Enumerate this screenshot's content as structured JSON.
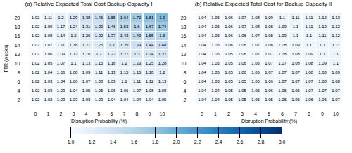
{
  "chart_data": [
    {
      "type": "heatmap",
      "title": "(a) Relative Expected Total Cost Backup Capacity I",
      "xlabel": "Disruption Probability (%)",
      "ylabel": "TTR (weeks)",
      "x": [
        0,
        1,
        2,
        3,
        4,
        5,
        6,
        7,
        8,
        9,
        10
      ],
      "y": [
        2,
        4,
        6,
        8,
        10,
        12,
        14,
        16,
        18,
        20
      ],
      "data_labels": true,
      "colorbar_range": [
        1.0,
        3.0
      ],
      "colorbar_ticks": [
        {
          "value": 1,
          "label": "1.0"
        },
        1.2,
        1.4,
        1.6,
        1.8,
        {
          "value": 2,
          "label": "2.0"
        },
        2.2,
        2.4,
        2.6,
        2.8,
        {
          "value": 3,
          "label": "3.0"
        }
      ],
      "values": [
        [
          1.02,
          1.02,
          1.03,
          1.03,
          1.03,
          1.03,
          1.04,
          1.04,
          1.04,
          1.04,
          1.05
        ],
        [
          1.02,
          1.03,
          1.03,
          1.04,
          1.05,
          1.05,
          1.06,
          1.06,
          1.07,
          1.08,
          1.08
        ],
        [
          1.02,
          1.03,
          1.04,
          1.06,
          1.07,
          1.08,
          1.09,
          1.1,
          1.11,
          1.12,
          1.13
        ],
        [
          1.02,
          1.04,
          1.06,
          1.08,
          1.09,
          1.11,
          1.13,
          1.15,
          1.16,
          1.18,
          1.2
        ],
        [
          1.02,
          1.05,
          1.07,
          1.1,
          1.13,
          1.15,
          1.18,
          1.2,
          1.23,
          1.25,
          1.28
        ],
        [
          1.02,
          1.06,
          1.09,
          1.13,
          1.16,
          1.2,
          1.23,
          1.27,
          1.3,
          1.34,
          1.37
        ],
        [
          1.02,
          1.07,
          1.11,
          1.16,
          1.21,
          1.25,
          1.3,
          1.35,
          1.39,
          1.44,
          1.48
        ],
        [
          1.02,
          1.08,
          1.14,
          1.2,
          1.26,
          1.32,
          1.37,
          1.43,
          1.49,
          1.55,
          1.6
        ],
        [
          1.02,
          1.09,
          1.17,
          1.24,
          1.31,
          1.39,
          1.46,
          1.53,
          1.6,
          1.67,
          1.74
        ],
        [
          1.02,
          1.11,
          1.2,
          1.29,
          1.38,
          1.46,
          1.55,
          1.64,
          1.72,
          1.81,
          1.9
        ]
      ]
    },
    {
      "type": "heatmap",
      "title": "(b) Relative Expected Total Cost for Backup Capacity II",
      "xlabel": "Disruption Probability (%)",
      "x": [
        0,
        1,
        2,
        3,
        4,
        5,
        6,
        7,
        8,
        9,
        10
      ],
      "y": [
        2,
        4,
        6,
        8,
        10,
        12,
        14,
        16,
        18,
        20
      ],
      "data_labels": true,
      "colorbar_range": [
        1.0,
        3.0
      ],
      "colorbar_ticks": [
        {
          "value": 1,
          "label": "1.0"
        },
        1.2,
        1.4,
        1.6,
        1.8,
        {
          "value": 2,
          "label": "2.0"
        },
        2.2,
        2.4,
        2.6,
        2.8,
        {
          "value": 3,
          "label": "3.0"
        }
      ],
      "values": [
        [
          1.04,
          1.04,
          1.05,
          1.05,
          1.05,
          1.05,
          1.06,
          1.06,
          1.06,
          1.06,
          1.07
        ],
        [
          1.04,
          1.04,
          1.05,
          1.05,
          1.05,
          1.06,
          1.06,
          1.06,
          1.07,
          1.07,
          1.07
        ],
        [
          1.04,
          1.05,
          1.05,
          1.05,
          1.06,
          1.06,
          1.07,
          1.07,
          1.07,
          1.08,
          1.08
        ],
        [
          1.04,
          1.05,
          1.05,
          1.06,
          1.06,
          1.07,
          1.07,
          1.07,
          1.08,
          1.08,
          1.09
        ],
        [
          1.04,
          1.05,
          1.05,
          1.06,
          1.06,
          1.07,
          1.07,
          1.08,
          1.08,
          1.09,
          1.1
        ],
        [
          1.04,
          1.05,
          1.05,
          1.06,
          1.07,
          1.07,
          1.08,
          1.08,
          1.09,
          1.1,
          1.1
        ],
        [
          1.04,
          1.05,
          1.06,
          1.06,
          1.07,
          1.08,
          1.08,
          1.09,
          1.1,
          1.1,
          1.11
        ],
        [
          1.04,
          1.05,
          1.06,
          1.06,
          1.07,
          1.08,
          1.09,
          1.1,
          1.1,
          1.11,
          1.12
        ],
        [
          1.04,
          1.05,
          1.06,
          1.07,
          1.08,
          1.08,
          1.09,
          1.1,
          1.11,
          1.12,
          1.12
        ],
        [
          1.04,
          1.05,
          1.06,
          1.07,
          1.08,
          1.09,
          1.1,
          1.11,
          1.11,
          1.12,
          1.13
        ]
      ]
    }
  ]
}
